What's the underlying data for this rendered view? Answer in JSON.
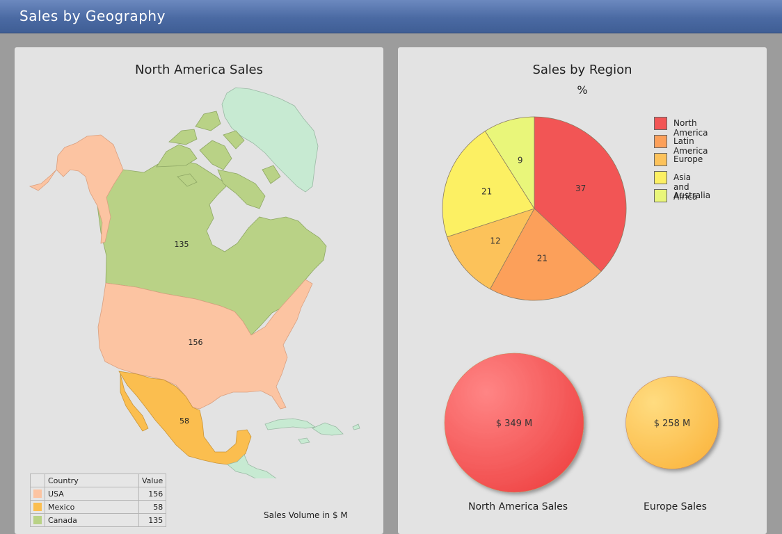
{
  "header": {
    "title": "Sales by Geography"
  },
  "map_panel": {
    "title": "North America Sales",
    "caption": "Sales Volume in $ M",
    "table": {
      "headers": [
        "Country",
        "Value"
      ],
      "rows": [
        {
          "country": "USA",
          "value": "156",
          "color": "#fcc4a2"
        },
        {
          "country": "Mexico",
          "value": "58",
          "color": "#fbbe4f"
        },
        {
          "country": "Canada",
          "value": "135",
          "color": "#b9d286"
        }
      ]
    },
    "map_labels": {
      "canada": "135",
      "usa": "156",
      "mexico": "58"
    },
    "colors": {
      "greenland": "#c7ead2",
      "central_america": "#c7ead2"
    }
  },
  "region_panel": {
    "title": "Sales by Region",
    "subtitle": "%",
    "bubbles": [
      {
        "label": "$ 349 M",
        "caption": "North America Sales"
      },
      {
        "label": "$ 258 M",
        "caption": "Europe Sales"
      }
    ]
  },
  "chart_data": [
    {
      "type": "pie",
      "title": "Sales by Region",
      "subtitle": "%",
      "categories": [
        "North America",
        "Latin America",
        "Europe",
        "Asia and Africa",
        "Australia"
      ],
      "values": [
        37,
        21,
        12,
        21,
        9
      ],
      "colors": [
        "#f25555",
        "#fca05a",
        "#fcc25a",
        "#fcf063",
        "#e9f67a"
      ],
      "legend_position": "right"
    },
    {
      "type": "bubble",
      "categories": [
        "North America Sales",
        "Europe Sales"
      ],
      "values": [
        349,
        258
      ],
      "labels": [
        "$ 349 M",
        "$ 258 M"
      ],
      "colors": [
        "#f45555",
        "#fcc24c"
      ]
    }
  ]
}
